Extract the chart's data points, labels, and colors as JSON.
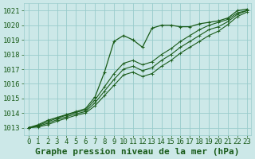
{
  "xlabel_label": "Graphe pression niveau de la mer (hPa)",
  "xlim_min": -0.5,
  "xlim_max": 23.4,
  "ylim": [
    1012.5,
    1021.5
  ],
  "yticks": [
    1013,
    1014,
    1015,
    1016,
    1017,
    1018,
    1019,
    1020,
    1021
  ],
  "xticks": [
    0,
    1,
    2,
    3,
    4,
    5,
    6,
    7,
    8,
    9,
    10,
    11,
    12,
    13,
    14,
    15,
    16,
    17,
    18,
    19,
    20,
    21,
    22,
    23
  ],
  "bg_color": "#cce8e8",
  "grid_color": "#99cccc",
  "line_color": "#1a5c1a",
  "series": [
    [
      1013.0,
      1013.2,
      1013.5,
      1013.7,
      1013.9,
      1014.1,
      1014.3,
      1015.1,
      1016.8,
      1018.9,
      1019.3,
      1019.0,
      1018.5,
      1019.8,
      1020.0,
      1020.0,
      1019.9,
      1019.9,
      1020.1,
      1020.2,
      1020.3,
      1020.5,
      1021.0,
      1021.1
    ],
    [
      1013.0,
      1013.15,
      1013.4,
      1013.65,
      1013.85,
      1014.05,
      1014.2,
      1014.9,
      1015.8,
      1016.7,
      1017.4,
      1017.6,
      1017.3,
      1017.5,
      1018.0,
      1018.4,
      1018.9,
      1019.3,
      1019.7,
      1020.0,
      1020.2,
      1020.4,
      1020.85,
      1021.0
    ],
    [
      1013.0,
      1013.1,
      1013.3,
      1013.55,
      1013.75,
      1013.95,
      1014.1,
      1014.7,
      1015.5,
      1016.3,
      1017.0,
      1017.2,
      1016.9,
      1017.1,
      1017.6,
      1018.0,
      1018.5,
      1018.9,
      1019.3,
      1019.7,
      1019.9,
      1020.25,
      1020.75,
      1021.0
    ],
    [
      1013.0,
      1013.05,
      1013.2,
      1013.45,
      1013.65,
      1013.85,
      1014.0,
      1014.5,
      1015.2,
      1015.9,
      1016.6,
      1016.8,
      1016.5,
      1016.7,
      1017.2,
      1017.6,
      1018.1,
      1018.5,
      1018.9,
      1019.3,
      1019.6,
      1020.05,
      1020.6,
      1020.9
    ]
  ],
  "font_family": "monospace",
  "tick_fontsize": 6.5,
  "label_fontsize": 8.0
}
